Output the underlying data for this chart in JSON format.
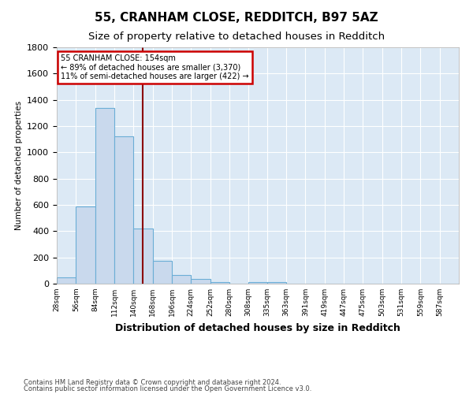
{
  "title1": "55, CRANHAM CLOSE, REDDITCH, B97 5AZ",
  "title2": "Size of property relative to detached houses in Redditch",
  "xlabel": "Distribution of detached houses by size in Redditch",
  "ylabel": "Number of detached properties",
  "footnote1": "Contains HM Land Registry data © Crown copyright and database right 2024.",
  "footnote2": "Contains public sector information licensed under the Open Government Licence v3.0.",
  "annotation_line1": "55 CRANHAM CLOSE: 154sqm",
  "annotation_line2": "← 89% of detached houses are smaller (3,370)",
  "annotation_line3": "11% of semi-detached houses are larger (422) →",
  "bar_values": [
    50,
    590,
    1340,
    1120,
    420,
    175,
    65,
    35,
    15,
    0,
    15,
    15,
    0,
    0,
    0,
    0,
    0,
    0,
    0,
    0,
    0
  ],
  "bar_edges": [
    28,
    56,
    84,
    112,
    140,
    168,
    196,
    224,
    252,
    280,
    308,
    335,
    363,
    391,
    419,
    447,
    475,
    503,
    531,
    559,
    587
  ],
  "x_labels": [
    "28sqm",
    "56sqm",
    "84sqm",
    "112sqm",
    "140sqm",
    "168sqm",
    "196sqm",
    "224sqm",
    "252sqm",
    "280sqm",
    "308sqm",
    "335sqm",
    "363sqm",
    "391sqm",
    "419sqm",
    "447sqm",
    "475sqm",
    "503sqm",
    "531sqm",
    "559sqm",
    "587sqm"
  ],
  "bar_color": "#c9d9ed",
  "bar_edge_color": "#6baed6",
  "vline_x": 154,
  "vline_color": "#8b0000",
  "ylim": [
    0,
    1800
  ],
  "yticks": [
    0,
    200,
    400,
    600,
    800,
    1000,
    1200,
    1400,
    1600,
    1800
  ],
  "fig_bg_color": "#ffffff",
  "plot_bg_color": "#dce9f5",
  "grid_color": "#ffffff",
  "title_fontsize": 11,
  "subtitle_fontsize": 9.5,
  "annotation_box_color": "#ffffff",
  "annotation_box_edge_color": "#cc0000"
}
